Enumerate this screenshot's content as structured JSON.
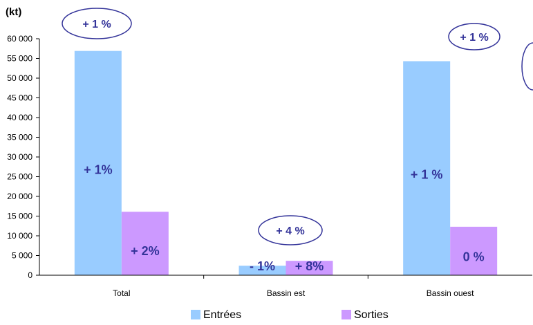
{
  "chart_data": {
    "type": "bar",
    "title": "",
    "unit_label": "(kt)",
    "categories": [
      "Total",
      "Bassin est",
      "Bassin ouest"
    ],
    "series": [
      {
        "name": "Entrées",
        "values": [
          56900,
          2400,
          54300
        ],
        "inside_labels": [
          "+ 1%",
          "- 1%",
          "+ 1 %"
        ]
      },
      {
        "name": "Sorties",
        "values": [
          16100,
          3650,
          12300
        ],
        "inside_labels": [
          "+ 2%",
          "+ 8%",
          "0 %"
        ]
      }
    ],
    "ylim": [
      0,
      60000
    ],
    "yticks": [
      0,
      5000,
      10000,
      15000,
      20000,
      25000,
      30000,
      35000,
      40000,
      45000,
      50000,
      55000,
      60000
    ],
    "ytick_labels": [
      "0",
      "5 000",
      "10 000",
      "15 000",
      "20 000",
      "25 000",
      "30 000",
      "35 000",
      "40 000",
      "45 000",
      "50 000",
      "55 000",
      "60 000"
    ],
    "annotations": [
      "+ 1 %",
      "+ 4 %",
      "+ 1 %"
    ],
    "legend_placement": "bottom",
    "grid": false
  },
  "colors": {
    "entrees": "#99ccff",
    "sorties": "#cc99ff",
    "label_text": "#333399",
    "ellipse_stroke": "#333399",
    "axis": "#000000"
  }
}
